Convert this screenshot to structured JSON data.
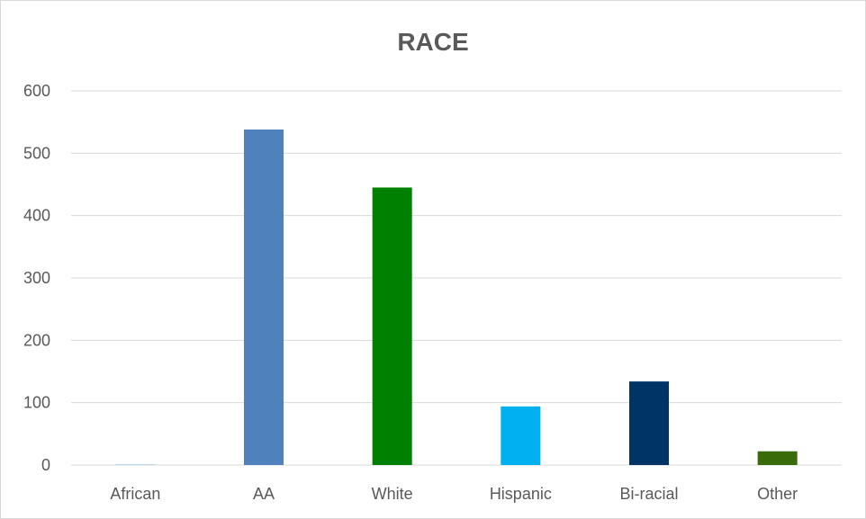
{
  "chart_data": {
    "type": "bar",
    "title": "RACE",
    "xlabel": "",
    "ylabel": "",
    "categories": [
      "African",
      "AA",
      "White",
      "Hispanic",
      "Bi-racial",
      "Other"
    ],
    "values": [
      1,
      538,
      445,
      94,
      134,
      22
    ],
    "colors": [
      "#bdd7ee",
      "#4f81bd",
      "#008000",
      "#00b0f0",
      "#003366",
      "#3a6b0a"
    ],
    "ylim": [
      0,
      600
    ],
    "yticks": [
      0,
      100,
      200,
      300,
      400,
      500,
      600
    ],
    "grid": true,
    "gridline_color": "#d9d9d9",
    "text_color": "#595959",
    "legend": "none"
  }
}
